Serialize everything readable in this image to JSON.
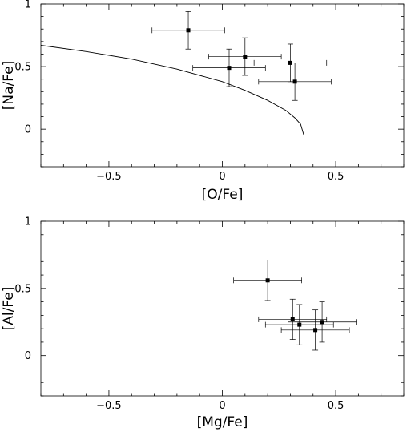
{
  "chart_data": [
    {
      "type": "scatter",
      "xlabel": "[O/Fe]",
      "ylabel": "[Na/Fe]",
      "xlim": [
        -0.8,
        0.8
      ],
      "ylim": [
        -0.3,
        1.0
      ],
      "xticks": [
        -0.5,
        0,
        0.5
      ],
      "xtick_labels": [
        "−0.5",
        "0",
        "0.5"
      ],
      "yticks": [
        0,
        0.5,
        1
      ],
      "ytick_labels": [
        "0",
        "0.5",
        "1"
      ],
      "grid": false,
      "points": [
        {
          "x": -0.15,
          "y": 0.79,
          "xerr": 0.16,
          "yerr": 0.15
        },
        {
          "x": 0.1,
          "y": 0.58,
          "xerr": 0.16,
          "yerr": 0.15
        },
        {
          "x": 0.03,
          "y": 0.49,
          "xerr": 0.16,
          "yerr": 0.15
        },
        {
          "x": 0.3,
          "y": 0.53,
          "xerr": 0.16,
          "yerr": 0.15
        },
        {
          "x": 0.32,
          "y": 0.38,
          "xerr": 0.16,
          "yerr": 0.15
        }
      ],
      "curve": {
        "x": [
          -0.8,
          -0.6,
          -0.4,
          -0.2,
          0.0,
          0.1,
          0.2,
          0.28,
          0.32,
          0.345,
          0.36
        ],
        "y": [
          0.67,
          0.62,
          0.56,
          0.48,
          0.38,
          0.31,
          0.23,
          0.15,
          0.09,
          0.04,
          -0.05
        ]
      }
    },
    {
      "type": "scatter",
      "xlabel": "[Mg/Fe]",
      "ylabel": "[Al/Fe]",
      "xlim": [
        -0.8,
        0.8
      ],
      "ylim": [
        -0.3,
        1.0
      ],
      "xticks": [
        -0.5,
        0,
        0.5
      ],
      "xtick_labels": [
        "−0.5",
        "0",
        "0.5"
      ],
      "yticks": [
        0,
        0.5,
        1
      ],
      "ytick_labels": [
        "0",
        "0.5",
        "1"
      ],
      "grid": false,
      "points": [
        {
          "x": 0.2,
          "y": 0.56,
          "xerr": 0.15,
          "yerr": 0.15
        },
        {
          "x": 0.31,
          "y": 0.27,
          "xerr": 0.15,
          "yerr": 0.15
        },
        {
          "x": 0.34,
          "y": 0.23,
          "xerr": 0.15,
          "yerr": 0.15
        },
        {
          "x": 0.44,
          "y": 0.25,
          "xerr": 0.15,
          "yerr": 0.15
        },
        {
          "x": 0.41,
          "y": 0.19,
          "xerr": 0.15,
          "yerr": 0.15
        }
      ]
    }
  ]
}
